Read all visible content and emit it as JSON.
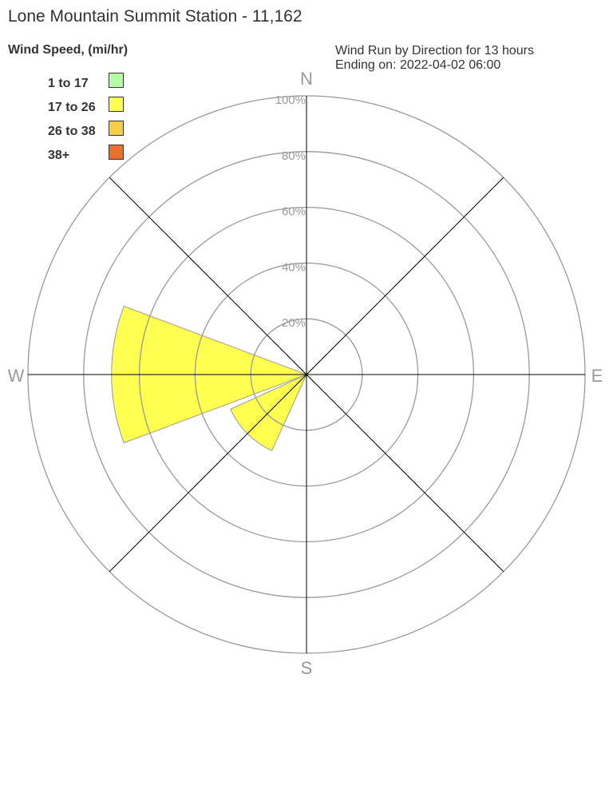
{
  "title": "Lone Mountain Summit Station - 11,162",
  "subtitle": [
    "Wind Run by Direction for 13 hours",
    "Ending on: 2022-04-02 06:00"
  ],
  "chart_data": {
    "type": "wind-rose",
    "legend_title": "Wind Speed, (mi/hr)",
    "legend": [
      {
        "label": "1 to 17",
        "color": "#b3ffa3"
      },
      {
        "label": "17 to 26",
        "color": "#ffff50"
      },
      {
        "label": "26 to 38",
        "color": "#f8cd48"
      },
      {
        "label": "38+",
        "color": "#ed6f2d"
      }
    ],
    "compass_labels": [
      "N",
      "E",
      "S",
      "W"
    ],
    "radial_ticks": [
      "20%",
      "40%",
      "60%",
      "80%",
      "100%"
    ],
    "radial_range": [
      0,
      100
    ],
    "directions": [
      "N",
      "NE",
      "E",
      "SE",
      "S",
      "SW",
      "W",
      "NW"
    ],
    "series": [
      {
        "name": "17 to 26",
        "values": {
          "N": 0,
          "NE": 0,
          "E": 0,
          "SE": 0,
          "S": 0,
          "SW": 30,
          "W": 70,
          "NW": 0
        }
      }
    ]
  }
}
